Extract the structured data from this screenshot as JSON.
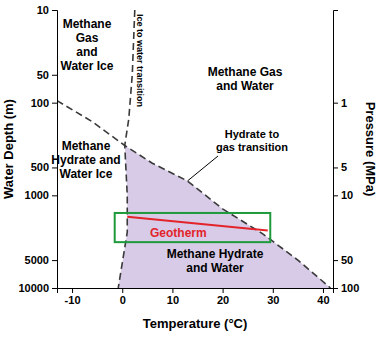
{
  "chart_data": {
    "type": "line",
    "x_label": "Temperature (°C)",
    "y_label": "Water Depth (m)",
    "y2_label": "Pressure (MPa)",
    "xlim": [
      -13,
      42
    ],
    "xticks": [
      -10,
      0,
      10,
      20,
      30,
      40
    ],
    "ylim": [
      10,
      10000
    ],
    "yticks": [
      10,
      50,
      100,
      500,
      1000,
      5000,
      10000
    ],
    "y2lim": [
      0.1,
      100
    ],
    "y2ticks": [
      1,
      5,
      10,
      50,
      100
    ],
    "log": "y",
    "grid": false,
    "series": [
      {
        "name": "Ice to water transition",
        "color": "#3a3a3a",
        "line_style": "dashed",
        "x": [
          2.5,
          2,
          1.3,
          0.5,
          1,
          1,
          -0.8
        ],
        "values": [
          10,
          50,
          150,
          290,
          1000,
          2500,
          10000
        ]
      },
      {
        "name": "Hydrate to gas transition",
        "color": "#3a3a3a",
        "line_style": "dashed",
        "x": [
          -13,
          -6,
          0.5,
          6,
          13,
          20,
          28,
          35,
          41.5
        ],
        "values": [
          95,
          160,
          290,
          450,
          700,
          1400,
          2600,
          5000,
          10000
        ]
      },
      {
        "name": "Geotherm",
        "color": "#e3242b",
        "line_style": "solid",
        "x": [
          1,
          29
        ],
        "values": [
          1700,
          2400
        ]
      }
    ],
    "shaded_region": {
      "color": "#d7cbe7",
      "x": [
        0.5,
        6,
        13,
        20,
        28,
        35,
        41.5,
        -0.8,
        1,
        1,
        0.5
      ],
      "values": [
        290,
        450,
        700,
        1400,
        2600,
        5000,
        10000,
        10000,
        2500,
        1000,
        290
      ]
    },
    "highlight_box": {
      "color": "#1e9a3c",
      "x": [
        -1.5,
        29.5
      ],
      "values": [
        1550,
        3200
      ]
    },
    "annotations": [
      {
        "text": [
          "Methane",
          "Gas",
          "and",
          "Water Ice"
        ]
      },
      {
        "text": [
          "Methane Gas",
          "and Water"
        ]
      },
      {
        "text": [
          "Methane",
          "Hydrate and",
          "Water Ice"
        ]
      },
      {
        "text": [
          "Methane Hydrate",
          "and Water"
        ]
      }
    ]
  }
}
